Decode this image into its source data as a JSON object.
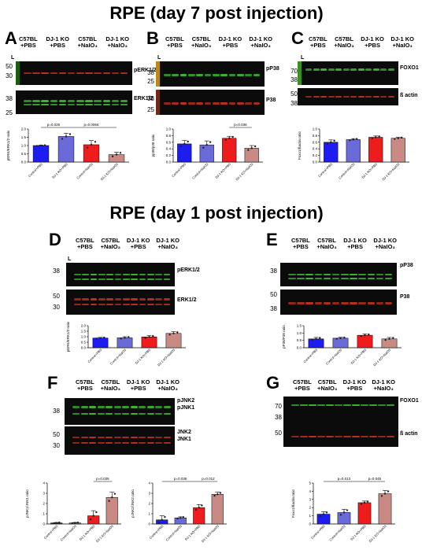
{
  "titles": {
    "top": "RPE (day 7 post injection)",
    "mid": "RPE (day 1 post injection)"
  },
  "panel_letters": {
    "A": "A",
    "B": "B",
    "C": "C",
    "D": "D",
    "E": "E",
    "F": "F",
    "G": "G"
  },
  "lane_marker": "L",
  "headers": {
    "abc": [
      "C57BL\n+PBS",
      "DJ-1 KO\n+PBS",
      "C57BL\n+NaIO₃",
      "DJ-1 KO\n+NaIO₃"
    ],
    "bc_alt": [
      "C57BL\n+PBS",
      "C57BL\n+NaIO₃",
      "DJ-1 KO\n+PBS",
      "DJ-1 KO\n+NaIO₃"
    ]
  },
  "blot_labels": {
    "A_top": "pERK1/2",
    "A_bot": "ERK1/2",
    "B_top": "pP38",
    "B_bot": "P38",
    "C_top": "FOXO1",
    "C_bot": "ß actin",
    "D_top": "pERK1/2",
    "D_bot": "ERK1/2",
    "E_top": "pP38",
    "E_bot": "P38",
    "F_top1": "pJNK2",
    "F_top2": "pJNK1",
    "F_bot1": "JNK2",
    "F_bot2": "JNK1",
    "G_top": "FOXO1",
    "G_bot": "ß actin"
  },
  "markers": {
    "A": [
      "50",
      "30",
      "38",
      "25"
    ],
    "B": [
      "38",
      "25",
      "38",
      "25"
    ],
    "C": [
      "70",
      "38",
      "50",
      "38"
    ],
    "D": [
      "38",
      "50",
      "30"
    ],
    "E": [
      "38",
      "50",
      "38"
    ],
    "F": [
      "38",
      "50",
      "30"
    ],
    "G": [
      "70",
      "38",
      "50"
    ]
  },
  "colors": {
    "green": "#3fbf2f",
    "red": "#c8321e",
    "blue": "#1d1df2",
    "lavender": "#6a6ad8",
    "redbar": "#ee1c1c",
    "pink": "#c98a84"
  },
  "chart_data": [
    {
      "panel": "A",
      "type": "bar",
      "ylabel": "pERK/ERK1/2 ratio",
      "categories": [
        "Control+PBS",
        "DJ-1 KO+PBS",
        "Control+NaIO3",
        "DJ-1 KO+NaIO3"
      ],
      "values": [
        1.0,
        1.55,
        1.05,
        0.45
      ],
      "errors": [
        0.03,
        0.2,
        0.25,
        0.15
      ],
      "ylim": [
        0,
        2
      ],
      "yticks": [
        "0.0",
        "0.5",
        "1.0",
        "1.5",
        "2.0"
      ],
      "pvalues": [
        {
          "text": "p=0.025",
          "from": 0,
          "to": 1
        },
        {
          "text": "p=0.0066",
          "from": 1,
          "to": 3
        }
      ]
    },
    {
      "panel": "B",
      "type": "bar",
      "ylabel": "pp38/p38 ratio",
      "categories": [
        "Control+PBS",
        "Control+NaIO3",
        "DJ-1 KO+PBS",
        "DJ-1 KO+NaIO3"
      ],
      "values": [
        0.55,
        0.52,
        0.72,
        0.42
      ],
      "errors": [
        0.1,
        0.12,
        0.06,
        0.08
      ],
      "ylim": [
        0,
        1
      ],
      "yticks": [
        "0.0",
        "0.2",
        "0.4",
        "0.6",
        "0.8",
        "1.0"
      ],
      "pvalues": [
        {
          "text": "p=0.036",
          "from": 2,
          "to": 3
        }
      ]
    },
    {
      "panel": "C",
      "type": "bar",
      "ylabel": "Foxo1/ßactin ratio",
      "categories": [
        "Control+PBS",
        "Control+NaIO3",
        "DJ-1 KO+PBS",
        "DJ-1 KO+NaIO3"
      ],
      "values": [
        0.6,
        0.68,
        0.75,
        0.72
      ],
      "errors": [
        0.07,
        0.03,
        0.04,
        0.03
      ],
      "ylim": [
        0,
        1
      ],
      "yticks": [
        "0.0",
        "0.2",
        "0.4",
        "0.6",
        "0.8",
        "1.0"
      ],
      "pvalues": []
    },
    {
      "panel": "D",
      "type": "bar",
      "ylabel": "pERK/ERK1/2 ratio",
      "categories": [
        "Control+PBS",
        "Control+NaIO3",
        "DJ-1 KO+PBS",
        "DJ-1 KO+NaIO3"
      ],
      "values": [
        0.88,
        0.9,
        0.98,
        1.3
      ],
      "errors": [
        0.06,
        0.1,
        0.12,
        0.15
      ],
      "ylim": [
        0,
        2
      ],
      "yticks": [
        "0.0",
        "0.5",
        "1.0",
        "1.5",
        "2.0"
      ],
      "pvalues": []
    },
    {
      "panel": "E",
      "type": "bar",
      "ylabel": "pP38/P38 ratio",
      "categories": [
        "Control+PBS",
        "Control+NaIO3",
        "DJ-1 KO+PBS",
        "DJ-1 KO+NaIO3"
      ],
      "values": [
        0.6,
        0.65,
        0.85,
        0.6
      ],
      "errors": [
        0.1,
        0.06,
        0.08,
        0.1
      ],
      "ylim": [
        0,
        1.5
      ],
      "yticks": [
        "0.0",
        "0.5",
        "1.0",
        "1.5"
      ],
      "pvalues": []
    },
    {
      "panel": "F1",
      "type": "bar",
      "ylabel": "pJNK1/JNK1 ratio",
      "categories": [
        "Control+PBS",
        "Control+NaIO3",
        "DJ-1 KO+PBS",
        "DJ-1 KO+NaIO3"
      ],
      "values": [
        0.1,
        0.1,
        0.8,
        2.6
      ],
      "errors": [
        0.05,
        0.05,
        0.5,
        0.5
      ],
      "ylim": [
        0,
        4
      ],
      "yticks": [
        "0",
        "1",
        "2",
        "3",
        "4"
      ],
      "pvalues": [
        {
          "text": "p=0.035",
          "from": 2,
          "to": 3
        }
      ]
    },
    {
      "panel": "F2",
      "type": "bar",
      "ylabel": "pJNK2/JNK2 ratio",
      "categories": [
        "Control+PBS",
        "Control+NaIO3",
        "DJ-1 KO+PBS",
        "DJ-1 KO+NaIO3"
      ],
      "values": [
        0.4,
        0.6,
        1.6,
        2.9
      ],
      "errors": [
        0.4,
        0.1,
        0.3,
        0.2
      ],
      "ylim": [
        0,
        4
      ],
      "yticks": [
        "0",
        "1",
        "2",
        "3",
        "4"
      ],
      "pvalues": [
        {
          "text": "p=0.036",
          "from": 0,
          "to": 2
        },
        {
          "text": "p=0.012",
          "from": 2,
          "to": 3
        }
      ]
    },
    {
      "panel": "G",
      "type": "bar",
      "ylabel": "Foxo1/ßactin ratio",
      "categories": [
        "Control+PBS",
        "Control+NaIO3",
        "DJ-1 KO+PBS",
        "DJ-1 KO+NaIO3"
      ],
      "values": [
        1.2,
        1.4,
        2.6,
        3.7
      ],
      "errors": [
        0.3,
        0.4,
        0.2,
        0.4
      ],
      "ylim": [
        0,
        5
      ],
      "yticks": [
        "0",
        "1",
        "2",
        "3",
        "4",
        "5"
      ],
      "pvalues": [
        {
          "text": "p=0.013",
          "from": 0,
          "to": 2
        },
        {
          "text": "p=0.045",
          "from": 2,
          "to": 3
        }
      ]
    }
  ]
}
